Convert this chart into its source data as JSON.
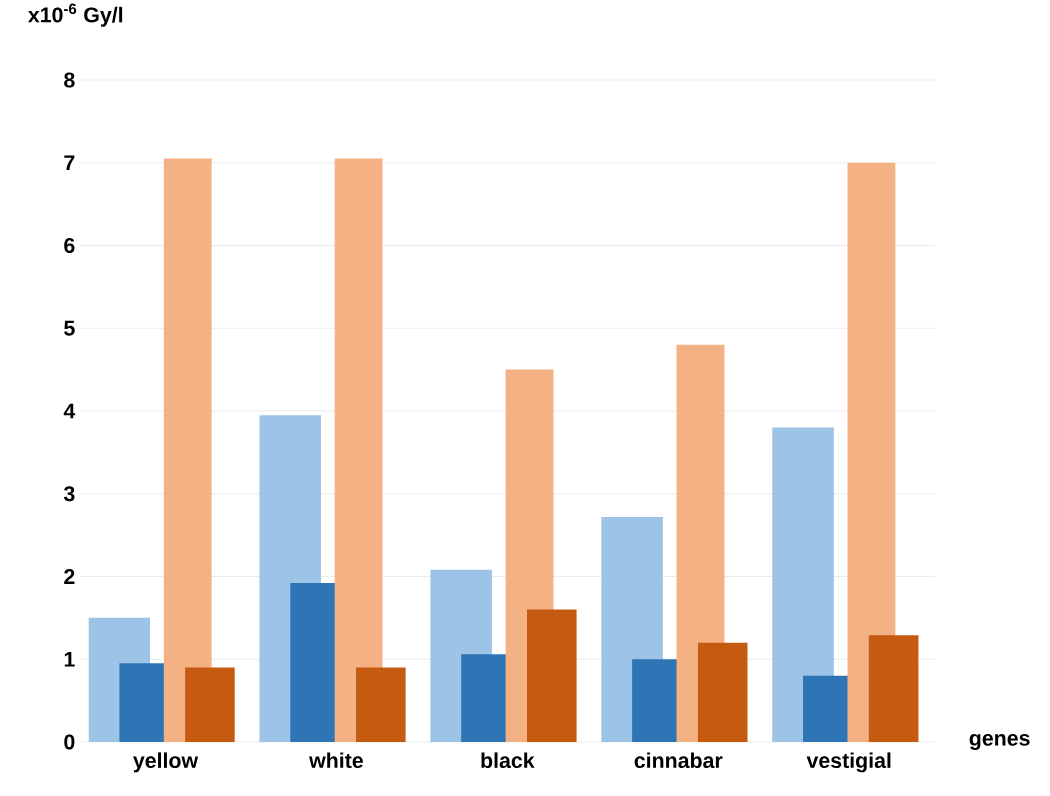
{
  "chart_data": {
    "type": "bar",
    "ylabel": "x10$^{-6}$ Gy/l",
    "xlabel": "genes",
    "categories": [
      "yellow",
      "white",
      "black",
      "cinnabar",
      "vestigial"
    ],
    "series": [
      {
        "color": "#9dc3e6",
        "values": [
          1.5,
          3.95,
          2.08,
          2.72,
          3.8
        ]
      },
      {
        "color": "#2e75b6",
        "values": [
          0.95,
          1.92,
          1.06,
          1.0,
          0.8
        ]
      },
      {
        "color": "#f4b183",
        "values": [
          7.05,
          7.05,
          4.5,
          4.8,
          7.0
        ]
      },
      {
        "color": "#c55a11",
        "values": [
          0.9,
          0.9,
          1.6,
          1.2,
          1.29
        ]
      }
    ],
    "ylim": [
      0,
      8
    ],
    "yticks": [
      0,
      1,
      2,
      3,
      4,
      5,
      6,
      7,
      8
    ],
    "grid": "y"
  }
}
